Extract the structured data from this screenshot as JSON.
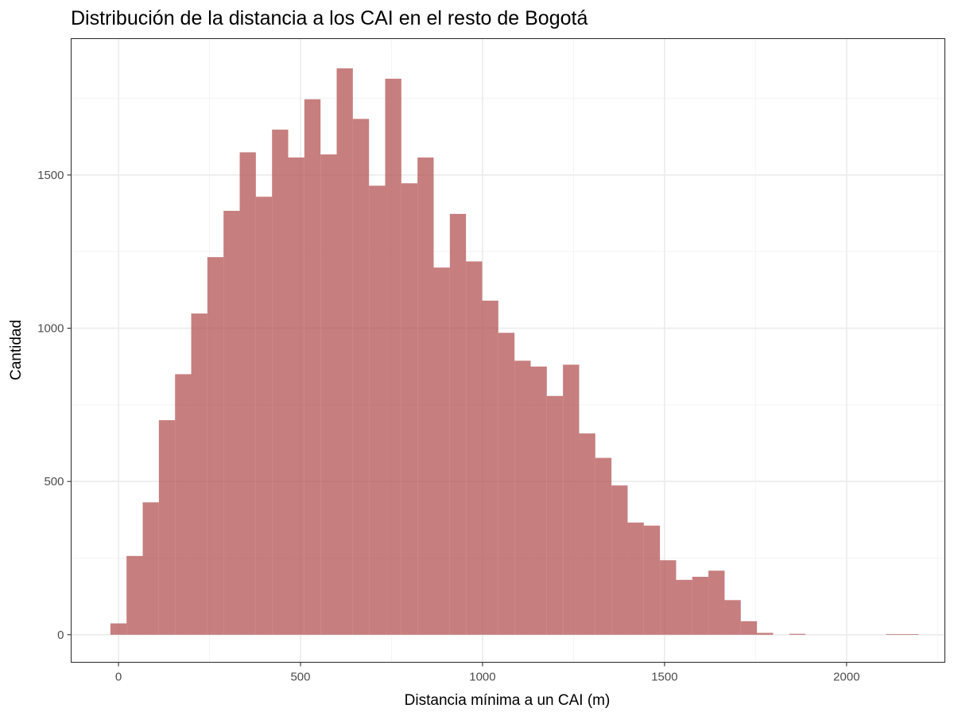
{
  "chart_data": {
    "type": "bar",
    "subtype": "histogram",
    "title": "Distribución de la distancia a los CAI en el resto de Bogotá",
    "xlabel": "Distancia mínima a un CAI (m)",
    "ylabel": "Cantidad",
    "xlim": [
      -130,
      2270
    ],
    "ylim": [
      -90,
      1945
    ],
    "x_ticks": [
      0,
      500,
      1000,
      1500,
      2000
    ],
    "x_tick_labels": [
      "0",
      "500",
      "1000",
      "1500",
      "2000"
    ],
    "y_ticks": [
      0,
      500,
      1000,
      1500
    ],
    "y_tick_labels": [
      "0",
      "500",
      "1000",
      "1500"
    ],
    "bin_width": 44.4,
    "bin_start": -22.2,
    "bin_centers": [
      0,
      44,
      89,
      133,
      178,
      222,
      266,
      311,
      355,
      400,
      444,
      488,
      533,
      577,
      622,
      666,
      710,
      755,
      799,
      844,
      888,
      932,
      977,
      1021,
      1066,
      1110,
      1154,
      1199,
      1243,
      1288,
      1332,
      1376,
      1421,
      1465,
      1510,
      1554,
      1598,
      1643,
      1687,
      1732,
      1776,
      1820,
      1865,
      1909,
      1954,
      1998,
      2042,
      2087,
      2131,
      2176
    ],
    "values": [
      37,
      257,
      432,
      700,
      850,
      1048,
      1232,
      1383,
      1574,
      1429,
      1648,
      1557,
      1747,
      1567,
      1848,
      1683,
      1465,
      1814,
      1473,
      1557,
      1198,
      1373,
      1218,
      1090,
      985,
      894,
      875,
      779,
      881,
      657,
      577,
      487,
      366,
      356,
      243,
      179,
      189,
      209,
      113,
      44,
      6,
      0,
      3,
      0,
      0,
      0,
      0,
      0,
      2,
      2
    ],
    "bar_color": "#b24c4c",
    "bar_opacity": 0.72,
    "grid": true,
    "legend": "none",
    "theme": "bw"
  }
}
